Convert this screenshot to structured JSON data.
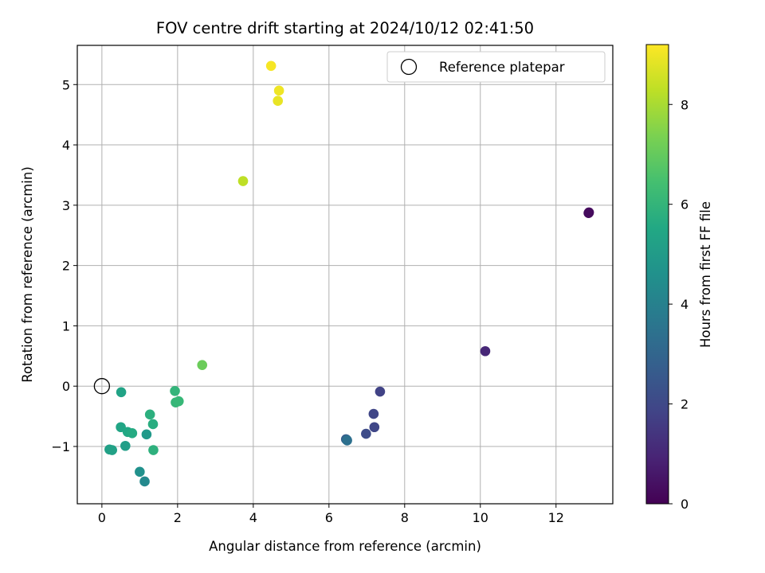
{
  "chart_data": {
    "type": "scatter",
    "title": "FOV centre drift starting at 2024/10/12 02:41:50",
    "xlabel": "Angular distance from reference (arcmin)",
    "ylabel": "Rotation from reference (arcmin)",
    "xlim": [
      -0.65,
      13.5
    ],
    "ylim": [
      -1.95,
      5.65
    ],
    "xticks": [
      0,
      2,
      4,
      6,
      8,
      10,
      12
    ],
    "yticks": [
      -1,
      0,
      1,
      2,
      3,
      4,
      5
    ],
    "grid": true,
    "legend": {
      "placement": "top-right",
      "entries": [
        "Reference platepar"
      ]
    },
    "reference_point": {
      "x": 0,
      "y": 0
    },
    "colorbar": {
      "label": "Hours from first FF file",
      "range": [
        0,
        9.2
      ],
      "ticks": [
        0,
        2,
        4,
        6,
        8
      ],
      "colormap": "viridis"
    },
    "points": [
      {
        "x": 12.86,
        "y": 2.87,
        "c": 0.2
      },
      {
        "x": 12.87,
        "y": 2.88,
        "c": 0.25
      },
      {
        "x": 10.13,
        "y": 0.58,
        "c": 1.0
      },
      {
        "x": 7.35,
        "y": -0.09,
        "c": 1.8
      },
      {
        "x": 7.18,
        "y": -0.46,
        "c": 1.9
      },
      {
        "x": 7.2,
        "y": -0.68,
        "c": 1.95
      },
      {
        "x": 6.98,
        "y": -0.79,
        "c": 2.1
      },
      {
        "x": 6.45,
        "y": -0.88,
        "c": 2.6
      },
      {
        "x": 6.47,
        "y": -0.89,
        "c": 3.0
      },
      {
        "x": 6.48,
        "y": -0.9,
        "c": 3.4
      },
      {
        "x": 1.13,
        "y": -1.58,
        "c": 4.3
      },
      {
        "x": 1.0,
        "y": -1.42,
        "c": 4.6
      },
      {
        "x": 1.18,
        "y": -0.8,
        "c": 4.9
      },
      {
        "x": 0.62,
        "y": -0.99,
        "c": 5.1
      },
      {
        "x": 0.2,
        "y": -1.05,
        "c": 5.2
      },
      {
        "x": 0.27,
        "y": -1.06,
        "c": 5.25
      },
      {
        "x": 0.51,
        "y": -0.1,
        "c": 5.3
      },
      {
        "x": 0.5,
        "y": -0.68,
        "c": 5.4
      },
      {
        "x": 0.68,
        "y": -0.76,
        "c": 5.5
      },
      {
        "x": 0.8,
        "y": -0.78,
        "c": 5.6
      },
      {
        "x": 1.35,
        "y": -0.63,
        "c": 5.7
      },
      {
        "x": 1.27,
        "y": -0.47,
        "c": 5.8
      },
      {
        "x": 1.36,
        "y": -1.06,
        "c": 5.85
      },
      {
        "x": 1.93,
        "y": -0.08,
        "c": 6.0
      },
      {
        "x": 1.95,
        "y": -0.27,
        "c": 6.05
      },
      {
        "x": 2.03,
        "y": -0.25,
        "c": 6.1
      },
      {
        "x": 2.65,
        "y": 0.35,
        "c": 7.1
      },
      {
        "x": 3.73,
        "y": 3.4,
        "c": 8.3
      },
      {
        "x": 4.65,
        "y": 4.73,
        "c": 8.9
      },
      {
        "x": 4.68,
        "y": 4.9,
        "c": 9.0
      },
      {
        "x": 4.47,
        "y": 5.31,
        "c": 9.1
      }
    ]
  }
}
